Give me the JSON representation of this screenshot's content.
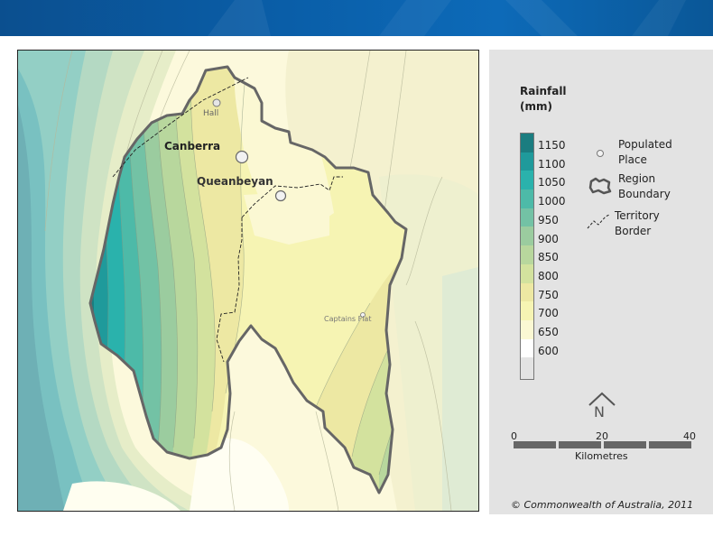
{
  "map": {
    "places": {
      "canberra": "Canberra",
      "queanbeyan": "Queanbeyan",
      "hall": "Hall",
      "captains_flat": "Captains Flat"
    }
  },
  "legend": {
    "title_line1": "Rainfall",
    "title_line2": "(mm)",
    "classes": [
      "1150",
      "1100",
      "1050",
      "1000",
      "950",
      "900",
      "850",
      "800",
      "750",
      "700",
      "650",
      "600"
    ],
    "colors": [
      "#1b7d80",
      "#1f9a9b",
      "#2ab2ac",
      "#4dbaa8",
      "#73c2a5",
      "#9bcc9f",
      "#b8d79d",
      "#d3e29e",
      "#ede8a3",
      "#f6f4b3",
      "#fbf8d3",
      "#ffffff"
    ],
    "populated_place_line1": "Populated",
    "populated_place_line2": "Place",
    "region_boundary_line1": "Region",
    "region_boundary_line2": "Boundary",
    "territory_border_line1": "Territory",
    "territory_border_line2": "Border",
    "north_label": "N",
    "scale": {
      "ticks": [
        "0",
        "20",
        "40"
      ],
      "unit": "Kilometres"
    }
  },
  "copyright": "© Commonwealth of Australia, 2011"
}
